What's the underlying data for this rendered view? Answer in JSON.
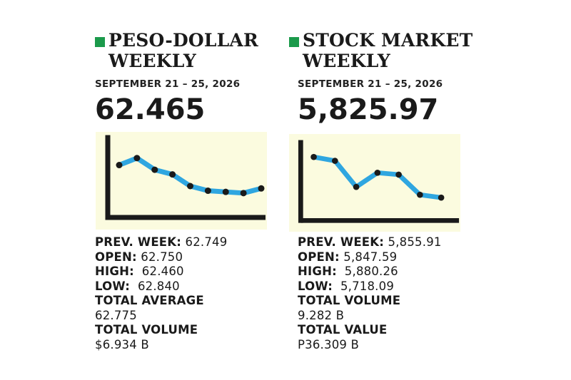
{
  "panels": [
    {
      "title_line1": "PESO-DOLLAR",
      "title_line2": "WEEKLY",
      "date": "SEPTEMBER 21 – 25, 2026",
      "value": "62.465",
      "prev_week_label": "PREV. WEEK:",
      "prev_week_value": "62.749",
      "open_label": "OPEN:",
      "open_value": "62.750",
      "high_label": "HIGH:",
      "high_value": "62.460",
      "low_label": "LOW:",
      "low_value": "62.840",
      "total_avg_label": "TOTAL AVERAGE",
      "total_avg_value": "62.775",
      "total_vol_label": "TOTAL VOLUME",
      "total_vol_value": "$6.934 B"
    },
    {
      "title_line1": "STOCK MARKET",
      "title_line2": "WEEKLY",
      "date": "SEPTEMBER 21 – 25, 2026",
      "value": "5,825.97",
      "prev_week_label": "PREV. WEEK:",
      "prev_week_value": "5,855.91",
      "open_label": "OPEN:",
      "open_value": "5,847.59",
      "high_label": "HIGH:",
      "high_value": "5,880.26",
      "low_label": "LOW:",
      "low_value": "5,718.09",
      "total_vol_label": "TOTAL VOLUME",
      "total_vol_value": "9.282 B",
      "total_val_label": "TOTAL VALUE",
      "total_val_value": "P36.309 B"
    }
  ],
  "colors": {
    "marker": "#1b9a4b",
    "chart_bg": "#fbfbdf",
    "line": "#2fa6e0",
    "point": "#1a1a1a",
    "axis": "#1a1a1a"
  },
  "chart_data": [
    {
      "type": "line",
      "title": "",
      "xlabel": "",
      "ylabel": "",
      "series": [
        {
          "values": [
            62.7,
            62.76,
            62.66,
            62.62,
            62.52,
            62.48,
            62.47,
            62.46,
            62.5
          ]
        }
      ],
      "ylim": [
        62.3,
        62.85
      ],
      "grid": false,
      "legend": "none"
    },
    {
      "type": "line",
      "title": "",
      "xlabel": "",
      "ylabel": "",
      "series": [
        {
          "values": [
            5880,
            5868,
            5785,
            5830,
            5824,
            5760,
            5751
          ]
        }
      ],
      "ylim": [
        5700,
        5900
      ],
      "grid": false,
      "legend": "none"
    }
  ]
}
